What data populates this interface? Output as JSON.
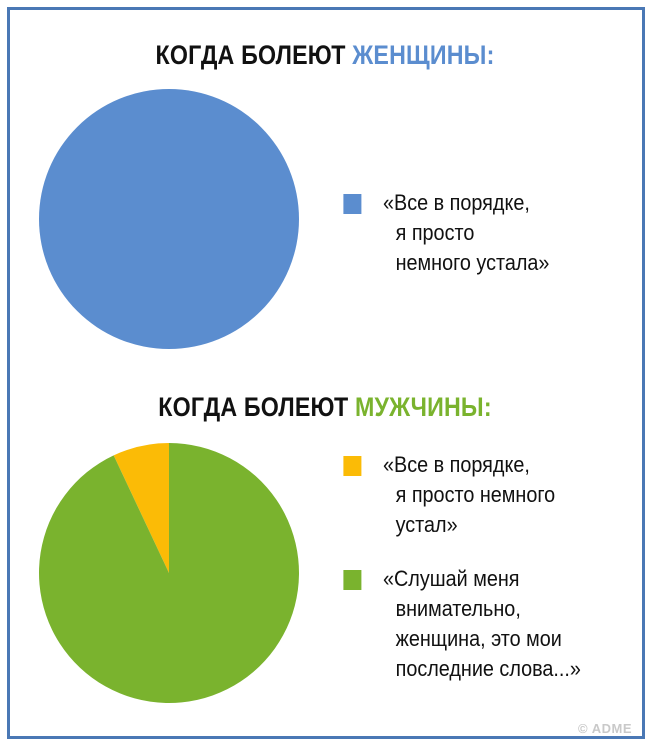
{
  "chart_data": [
    {
      "type": "pie",
      "title": {
        "prefix": "КОГДА БОЛЕЮТ ",
        "accent": "ЖЕНЩИНЫ:"
      },
      "accent_color": "#5b8dcf",
      "series": [
        {
          "name": "«Все в порядке, я просто немного устала»",
          "value": 100,
          "color": "#5b8dcf",
          "lines": [
            "«Все в порядке,",
            "я просто",
            "немного устала»"
          ]
        }
      ]
    },
    {
      "type": "pie",
      "title": {
        "prefix": "КОГДА БОЛЕЮТ ",
        "accent": "МУЖЧИНЫ:"
      },
      "accent_color": "#7ab32e",
      "series": [
        {
          "name": "«Все в порядке, я просто немного устал»",
          "value": 7,
          "color": "#fbbb06",
          "lines": [
            "«Все в порядке,",
            "я просто немного",
            "устал»"
          ]
        },
        {
          "name": "«Слушай меня внимательно, женщина, это мои последние слова...»",
          "value": 93,
          "color": "#7ab32e",
          "lines": [
            "«Слушай меня",
            "внимательно,",
            "женщина, это мои",
            "последние слова...»"
          ]
        }
      ]
    }
  ],
  "watermark": "© ADME"
}
